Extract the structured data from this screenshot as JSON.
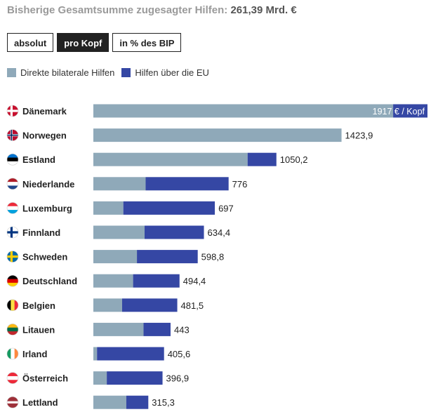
{
  "header": {
    "title_prefix": "Bisherige Gesamtsumme zugesagter Hilfen:",
    "total": "261,39 Mrd. €"
  },
  "toggle": {
    "buttons": [
      "absolut",
      "pro Kopf",
      "in % des BIP"
    ],
    "active": "pro Kopf"
  },
  "colors": {
    "bilateral": "#8fa9b9",
    "eu": "#3547a4",
    "label_bg": "#3547a4"
  },
  "chart_data": {
    "type": "bar",
    "orientation": "horizontal",
    "stacked": true,
    "unit_label": "1917 € / Kopf",
    "series_names": [
      "Direkte bilaterale Hilfen",
      "Hilfen über die EU"
    ],
    "countries": [
      {
        "name": "Dänemark",
        "flag": "dk",
        "total": 1917,
        "total_label": "1917 € / Kopf",
        "bilateral": 1720,
        "eu": 197
      },
      {
        "name": "Norwegen",
        "flag": "no",
        "total": 1423.9,
        "total_label": "1423,9",
        "bilateral": 1423.9,
        "eu": 0
      },
      {
        "name": "Estland",
        "flag": "ee",
        "total": 1050.2,
        "total_label": "1050,2",
        "bilateral": 885,
        "eu": 165.2
      },
      {
        "name": "Niederlande",
        "flag": "nl",
        "total": 776,
        "total_label": "776",
        "bilateral": 300,
        "eu": 476
      },
      {
        "name": "Luxemburg",
        "flag": "lu",
        "total": 697,
        "total_label": "697",
        "bilateral": 172,
        "eu": 525
      },
      {
        "name": "Finnland",
        "flag": "fi",
        "total": 634.4,
        "total_label": "634,4",
        "bilateral": 294,
        "eu": 340.4
      },
      {
        "name": "Schweden",
        "flag": "se",
        "total": 598.8,
        "total_label": "598,8",
        "bilateral": 250,
        "eu": 348.8
      },
      {
        "name": "Deutschland",
        "flag": "de",
        "total": 494.4,
        "total_label": "494,4",
        "bilateral": 228,
        "eu": 266.4
      },
      {
        "name": "Belgien",
        "flag": "be",
        "total": 481.5,
        "total_label": "481,5",
        "bilateral": 165,
        "eu": 316.5
      },
      {
        "name": "Litauen",
        "flag": "lt",
        "total": 443,
        "total_label": "443",
        "bilateral": 288,
        "eu": 155
      },
      {
        "name": "Irland",
        "flag": "ie",
        "total": 405.6,
        "total_label": "405,6",
        "bilateral": 21,
        "eu": 384.6
      },
      {
        "name": "Österreich",
        "flag": "at",
        "total": 396.9,
        "total_label": "396,9",
        "bilateral": 77,
        "eu": 319.9
      },
      {
        "name": "Lettland",
        "flag": "lv",
        "total": 315.3,
        "total_label": "315,3",
        "bilateral": 189,
        "eu": 126.3
      }
    ],
    "xlim": [
      0,
      1917
    ],
    "grid": false,
    "legend_position": "top-left"
  }
}
